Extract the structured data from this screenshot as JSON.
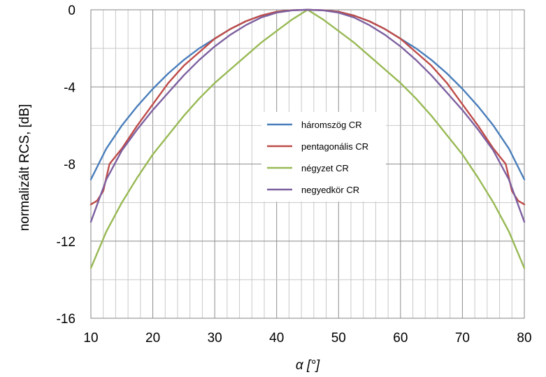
{
  "chart_data": {
    "type": "line",
    "xlabel": "α [°]",
    "ylabel": "normalizált RCS, [dB]",
    "xlim": [
      10,
      80
    ],
    "ylim": [
      -16,
      0
    ],
    "xticks": [
      10,
      20,
      30,
      40,
      50,
      60,
      70,
      80
    ],
    "yticks": [
      0,
      -4,
      -8,
      -12,
      -16
    ],
    "grid": true,
    "legend_position": "center",
    "series": [
      {
        "name": "háromszög CR",
        "color": "#4a7ebb",
        "x": [
          10,
          12.5,
          15,
          17.5,
          20,
          22.5,
          25,
          27.5,
          30,
          32.5,
          35,
          37.5,
          40,
          42.5,
          45,
          47.5,
          50,
          52.5,
          55,
          57.5,
          60,
          62.5,
          65,
          67.5,
          70,
          72.5,
          75,
          77.5,
          80
        ],
        "y": [
          -8.8,
          -7.2,
          -6.0,
          -5.0,
          -4.1,
          -3.3,
          -2.6,
          -2.0,
          -1.5,
          -1.0,
          -0.6,
          -0.3,
          -0.1,
          -0.02,
          0,
          -0.02,
          -0.1,
          -0.3,
          -0.6,
          -1.0,
          -1.5,
          -2.0,
          -2.6,
          -3.3,
          -4.1,
          -5.0,
          -6.0,
          -7.2,
          -8.8
        ]
      },
      {
        "name": "pentagonális CR",
        "color": "#be4b48",
        "x": [
          10,
          11,
          12,
          13,
          15,
          17.5,
          20,
          22.5,
          25,
          27.5,
          30,
          32.5,
          35,
          37.5,
          40,
          42.5,
          45,
          47.5,
          50,
          52.5,
          55,
          57.5,
          60,
          62.5,
          65,
          67.5,
          70,
          72.5,
          75,
          77,
          78,
          79,
          80
        ],
        "y": [
          -10.1,
          -9.9,
          -9.4,
          -8.0,
          -7.2,
          -6.0,
          -4.9,
          -3.8,
          -2.9,
          -2.2,
          -1.5,
          -1.0,
          -0.6,
          -0.3,
          -0.1,
          -0.02,
          0,
          -0.02,
          -0.1,
          -0.3,
          -0.6,
          -1.0,
          -1.5,
          -2.2,
          -2.9,
          -3.8,
          -4.9,
          -6.0,
          -7.2,
          -8.0,
          -9.4,
          -9.9,
          -10.1
        ]
      },
      {
        "name": "négyzet CR",
        "color": "#98b954",
        "x": [
          10,
          12.5,
          15,
          17.5,
          20,
          22.5,
          25,
          27.5,
          30,
          32.5,
          35,
          37.5,
          40,
          42.5,
          45,
          47.5,
          50,
          52.5,
          55,
          57.5,
          60,
          62.5,
          65,
          67.5,
          70,
          72.5,
          75,
          77.5,
          80
        ],
        "y": [
          -13.4,
          -11.5,
          -10.0,
          -8.7,
          -7.5,
          -6.5,
          -5.5,
          -4.6,
          -3.8,
          -3.1,
          -2.4,
          -1.7,
          -1.1,
          -0.5,
          0,
          -0.5,
          -1.1,
          -1.7,
          -2.4,
          -3.1,
          -3.8,
          -4.6,
          -5.5,
          -6.5,
          -7.5,
          -8.7,
          -10.0,
          -11.5,
          -13.4
        ]
      },
      {
        "name": "negyedkör CR",
        "color": "#7d60a0",
        "x": [
          10,
          12.5,
          15,
          17.5,
          20,
          22.5,
          25,
          27.5,
          30,
          32.5,
          35,
          37.5,
          40,
          42.5,
          45,
          47.5,
          50,
          52.5,
          55,
          57.5,
          60,
          62.5,
          65,
          67.5,
          70,
          72.5,
          75,
          77.5,
          80
        ],
        "y": [
          -11.0,
          -8.8,
          -7.3,
          -6.2,
          -5.2,
          -4.3,
          -3.4,
          -2.6,
          -1.9,
          -1.3,
          -0.8,
          -0.4,
          -0.15,
          -0.03,
          0,
          -0.03,
          -0.15,
          -0.4,
          -0.8,
          -1.3,
          -1.9,
          -2.6,
          -3.4,
          -4.3,
          -5.2,
          -6.2,
          -7.3,
          -8.8,
          -11.0
        ]
      }
    ]
  }
}
